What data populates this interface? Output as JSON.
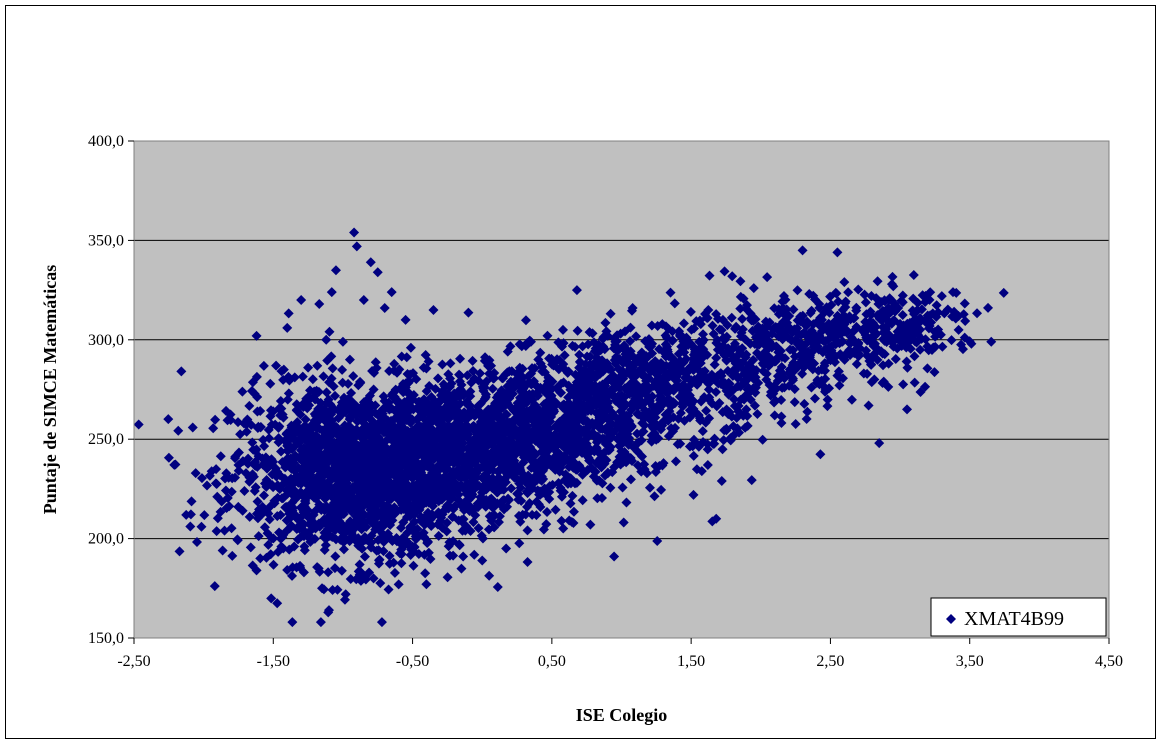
{
  "chart_data": {
    "type": "scatter",
    "title": "",
    "xlabel": "ISE Colegio",
    "ylabel": "Puntaje de SIMCE Matemáticas",
    "xlim": [
      -2.5,
      4.5
    ],
    "ylim": [
      150,
      400
    ],
    "x_ticks": [
      -2.5,
      -1.5,
      -0.5,
      0.5,
      1.5,
      2.5,
      3.5,
      4.5
    ],
    "y_ticks": [
      150,
      200,
      250,
      300,
      350,
      400
    ],
    "x_tick_labels": [
      "-2,50",
      "-1,50",
      "-0,50",
      "0,50",
      "1,50",
      "2,50",
      "3,50",
      "4,50"
    ],
    "y_tick_labels": [
      "150,0",
      "200,0",
      "250,0",
      "300,0",
      "350,0",
      "400,0"
    ],
    "grid": "horizontal major gridlines",
    "legend": {
      "position": "bottom-right",
      "entries": [
        "XMAT4B99"
      ]
    },
    "colors": {
      "plot_background": "#c0c0c0",
      "marker": "#000080"
    },
    "series": [
      {
        "name": "XMAT4B99",
        "marker": "diamond",
        "points": [
          [
            -1.85,
            204
          ],
          [
            -1.75,
            237
          ],
          [
            -1.72,
            214
          ],
          [
            -1.62,
            302
          ],
          [
            -1.62,
            184
          ],
          [
            -1.55,
            226
          ],
          [
            -1.48,
            287
          ],
          [
            -1.45,
            262
          ],
          [
            -1.4,
            306
          ],
          [
            -1.35,
            196
          ],
          [
            -1.3,
            320
          ],
          [
            -1.28,
            183
          ],
          [
            -1.25,
            286
          ],
          [
            -1.2,
            270
          ],
          [
            -1.17,
            318
          ],
          [
            -1.15,
            175
          ],
          [
            -1.12,
            300
          ],
          [
            -1.1,
            164
          ],
          [
            -1.08,
            324
          ],
          [
            -1.05,
            335
          ],
          [
            -1.0,
            299
          ],
          [
            -0.98,
            172
          ],
          [
            -0.95,
            290
          ],
          [
            -0.92,
            354
          ],
          [
            -0.9,
            347
          ],
          [
            -0.88,
            187
          ],
          [
            -0.85,
            320
          ],
          [
            -0.8,
            339
          ],
          [
            -0.78,
            180
          ],
          [
            -0.75,
            334
          ],
          [
            -0.72,
            158
          ],
          [
            -0.7,
            316
          ],
          [
            -0.65,
            324
          ],
          [
            -0.6,
            177
          ],
          [
            -0.55,
            310
          ],
          [
            -0.5,
            196
          ],
          [
            -0.42,
            286
          ],
          [
            -0.35,
            315
          ],
          [
            -0.3,
            209
          ],
          [
            -0.22,
            278
          ],
          [
            -0.15,
            231
          ],
          [
            -0.08,
            262
          ],
          [
            0.0,
            189
          ],
          [
            0.05,
            283
          ],
          [
            0.12,
            246
          ],
          [
            0.2,
            274
          ],
          [
            0.28,
            219
          ],
          [
            0.35,
            265
          ],
          [
            0.42,
            288
          ],
          [
            0.5,
            237
          ],
          [
            0.58,
            305
          ],
          [
            0.62,
            254
          ],
          [
            0.68,
            325
          ],
          [
            0.75,
            273
          ],
          [
            0.82,
            238
          ],
          [
            0.9,
            268
          ],
          [
            0.98,
            295
          ],
          [
            1.05,
            256
          ],
          [
            1.08,
            316
          ],
          [
            1.15,
            283
          ],
          [
            1.22,
            263
          ],
          [
            1.3,
            294
          ],
          [
            1.38,
            275
          ],
          [
            1.45,
            296
          ],
          [
            1.52,
            287
          ],
          [
            1.6,
            313
          ],
          [
            1.62,
            237
          ],
          [
            1.68,
            210
          ],
          [
            1.72,
            229
          ],
          [
            1.8,
            290
          ],
          [
            1.88,
            270
          ],
          [
            1.95,
            326
          ],
          [
            2.02,
            298
          ],
          [
            2.1,
            262
          ],
          [
            2.18,
            312
          ],
          [
            2.25,
            300
          ],
          [
            2.3,
            345
          ],
          [
            2.35,
            287
          ],
          [
            2.42,
            318
          ],
          [
            2.5,
            303
          ],
          [
            2.55,
            344
          ],
          [
            2.6,
            329
          ],
          [
            2.68,
            295
          ],
          [
            2.75,
            309
          ],
          [
            2.82,
            298
          ],
          [
            2.85,
            248
          ],
          [
            2.92,
            320
          ],
          [
            3.0,
            308
          ],
          [
            3.05,
            265
          ],
          [
            3.1,
            313
          ],
          [
            3.18,
            319
          ],
          [
            3.25,
            304
          ],
          [
            3.3,
            322
          ],
          [
            3.38,
            324
          ],
          [
            3.42,
            312
          ]
        ],
        "clusters": [
          {
            "center": [
              -0.9,
              232
            ],
            "spread": [
              0.45,
              22
            ],
            "count": 1500
          },
          {
            "center": [
              -0.3,
              242
            ],
            "spread": [
              0.55,
              20
            ],
            "count": 1100
          },
          {
            "center": [
              0.5,
              257
            ],
            "spread": [
              0.45,
              16
            ],
            "count": 800
          },
          {
            "center": [
              1.3,
              280
            ],
            "spread": [
              0.45,
              14
            ],
            "count": 600
          },
          {
            "center": [
              2.3,
              298
            ],
            "spread": [
              0.45,
              12
            ],
            "count": 420
          },
          {
            "center": [
              3.0,
              308
            ],
            "spread": [
              0.3,
              9
            ],
            "count": 180
          }
        ]
      }
    ]
  }
}
